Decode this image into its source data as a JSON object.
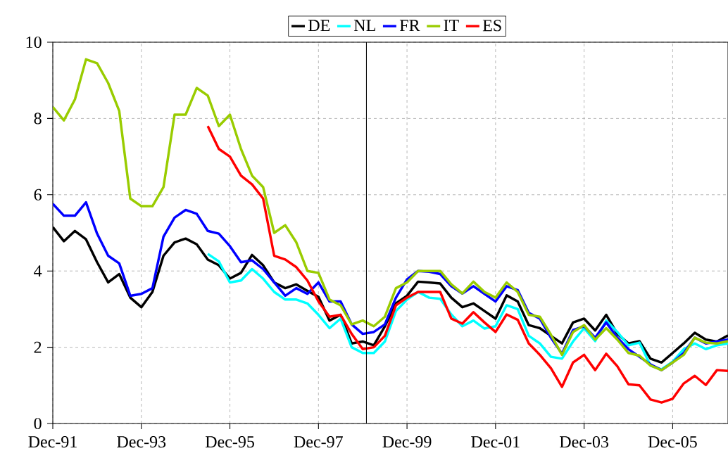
{
  "chart_data": {
    "type": "line",
    "x": [
      "1991-12",
      "1992-03",
      "1992-06",
      "1992-09",
      "1992-12",
      "1993-03",
      "1993-06",
      "1993-09",
      "1993-12",
      "1994-03",
      "1994-06",
      "1994-09",
      "1994-12",
      "1995-03",
      "1995-06",
      "1995-09",
      "1995-12",
      "1996-03",
      "1996-06",
      "1996-09",
      "1996-12",
      "1997-03",
      "1997-06",
      "1997-09",
      "1997-12",
      "1998-03",
      "1998-06",
      "1998-09",
      "1998-12",
      "1999-03",
      "1999-06",
      "1999-09",
      "1999-12",
      "2000-03",
      "2000-06",
      "2000-09",
      "2000-12",
      "2001-03",
      "2001-06",
      "2001-09",
      "2001-12",
      "2002-03",
      "2002-06",
      "2002-09",
      "2002-12",
      "2003-03",
      "2003-06",
      "2003-09",
      "2003-12",
      "2004-03",
      "2004-06",
      "2004-09",
      "2004-12",
      "2005-03",
      "2005-06",
      "2005-09",
      "2005-12",
      "2006-03",
      "2006-06",
      "2006-09",
      "2006-12",
      "2007-03"
    ],
    "series": [
      {
        "name": "DE",
        "color": "#000000",
        "values": [
          5.15,
          4.78,
          5.05,
          4.83,
          4.23,
          3.7,
          3.92,
          3.3,
          3.05,
          3.45,
          4.4,
          4.75,
          4.85,
          4.7,
          4.3,
          4.15,
          3.8,
          3.95,
          4.42,
          4.15,
          3.7,
          3.55,
          3.65,
          3.48,
          3.32,
          2.7,
          2.85,
          2.1,
          2.15,
          2.05,
          2.55,
          3.15,
          3.35,
          3.72,
          3.7,
          3.67,
          3.3,
          3.05,
          3.15,
          2.95,
          2.75,
          3.36,
          3.2,
          2.58,
          2.5,
          2.3,
          2.1,
          2.65,
          2.75,
          2.44,
          2.85,
          2.35,
          2.1,
          2.16,
          1.7,
          1.6,
          1.85,
          2.1,
          2.38,
          2.2,
          2.15,
          2.31
        ]
      },
      {
        "name": "NL",
        "color": "#00ffff",
        "values": [
          null,
          null,
          null,
          null,
          null,
          null,
          null,
          null,
          null,
          null,
          null,
          null,
          null,
          null,
          4.45,
          4.25,
          3.7,
          3.75,
          4.05,
          3.8,
          3.45,
          3.25,
          3.25,
          3.15,
          2.85,
          2.5,
          2.75,
          2.0,
          1.85,
          1.85,
          2.15,
          2.95,
          3.25,
          3.45,
          3.3,
          3.27,
          2.86,
          2.55,
          2.7,
          2.49,
          2.55,
          3.1,
          3.0,
          2.3,
          2.1,
          1.75,
          1.7,
          2.15,
          2.5,
          2.16,
          2.7,
          2.4,
          2.05,
          2.12,
          1.52,
          1.42,
          1.62,
          1.95,
          2.1,
          1.95,
          2.05,
          2.1
        ]
      },
      {
        "name": "FR",
        "color": "#0000ff",
        "values": [
          5.76,
          5.45,
          5.45,
          5.8,
          4.98,
          4.4,
          4.2,
          3.35,
          3.4,
          3.55,
          4.9,
          5.4,
          5.6,
          5.5,
          5.05,
          4.98,
          4.65,
          4.23,
          4.28,
          4.05,
          3.7,
          3.35,
          3.55,
          3.4,
          3.7,
          3.2,
          3.2,
          2.6,
          2.35,
          2.4,
          2.6,
          3.3,
          3.78,
          4.0,
          3.98,
          3.92,
          3.6,
          3.41,
          3.6,
          3.4,
          3.2,
          3.6,
          3.5,
          2.9,
          2.75,
          2.25,
          1.83,
          2.45,
          2.55,
          2.25,
          2.65,
          2.25,
          1.95,
          1.75,
          1.55,
          1.4,
          1.6,
          1.85,
          2.25,
          2.1,
          2.15,
          2.2
        ]
      },
      {
        "name": "IT",
        "color": "#99cc00",
        "values": [
          8.3,
          7.95,
          8.5,
          9.55,
          9.45,
          8.93,
          8.2,
          5.9,
          5.7,
          5.7,
          6.2,
          8.1,
          8.1,
          8.8,
          8.6,
          7.8,
          8.1,
          7.2,
          6.5,
          6.2,
          5.0,
          5.2,
          4.75,
          4.0,
          3.95,
          3.25,
          3.1,
          2.6,
          2.7,
          2.55,
          2.8,
          3.55,
          3.7,
          4.0,
          4.0,
          4.0,
          3.65,
          3.41,
          3.72,
          3.45,
          3.3,
          3.7,
          3.45,
          2.85,
          2.8,
          2.33,
          1.8,
          2.4,
          2.58,
          2.2,
          2.5,
          2.2,
          1.85,
          1.78,
          1.52,
          1.4,
          1.6,
          1.8,
          2.25,
          2.12,
          2.1,
          2.16
        ]
      },
      {
        "name": "ES",
        "color": "#ff0000",
        "values": [
          null,
          null,
          null,
          null,
          null,
          null,
          null,
          null,
          null,
          null,
          null,
          null,
          null,
          null,
          7.8,
          7.2,
          7.0,
          6.5,
          6.27,
          5.9,
          4.4,
          4.3,
          4.1,
          3.75,
          3.2,
          2.8,
          2.85,
          2.35,
          1.95,
          2.0,
          2.3,
          3.1,
          3.3,
          3.45,
          3.45,
          3.45,
          2.75,
          2.62,
          2.92,
          2.65,
          2.4,
          2.86,
          2.72,
          2.1,
          1.8,
          1.45,
          0.96,
          1.6,
          1.8,
          1.4,
          1.83,
          1.5,
          1.03,
          1.0,
          0.63,
          0.55,
          0.65,
          1.05,
          1.25,
          1.01,
          1.4,
          1.38
        ]
      }
    ],
    "xlim": [
      "1991-12",
      "2007-03"
    ],
    "xticks": [
      {
        "value": "1991-12",
        "label": "Dec-91"
      },
      {
        "value": "1993-12",
        "label": "Dec-93"
      },
      {
        "value": "1995-12",
        "label": "Dec-95"
      },
      {
        "value": "1997-12",
        "label": "Dec-97"
      },
      {
        "value": "1999-12",
        "label": "Dec-99"
      },
      {
        "value": "2001-12",
        "label": "Dec-01"
      },
      {
        "value": "2003-12",
        "label": "Dec-03"
      },
      {
        "value": "2005-12",
        "label": "Dec-05"
      }
    ],
    "ylim": [
      0,
      10
    ],
    "yticks": [
      0,
      2,
      4,
      6,
      8,
      10
    ],
    "ref_lines": [
      {
        "axis": "x",
        "value": "1999-01",
        "color": "#000000"
      }
    ],
    "grid": true,
    "legend": "top",
    "line_style": "solid",
    "marker": "none"
  }
}
